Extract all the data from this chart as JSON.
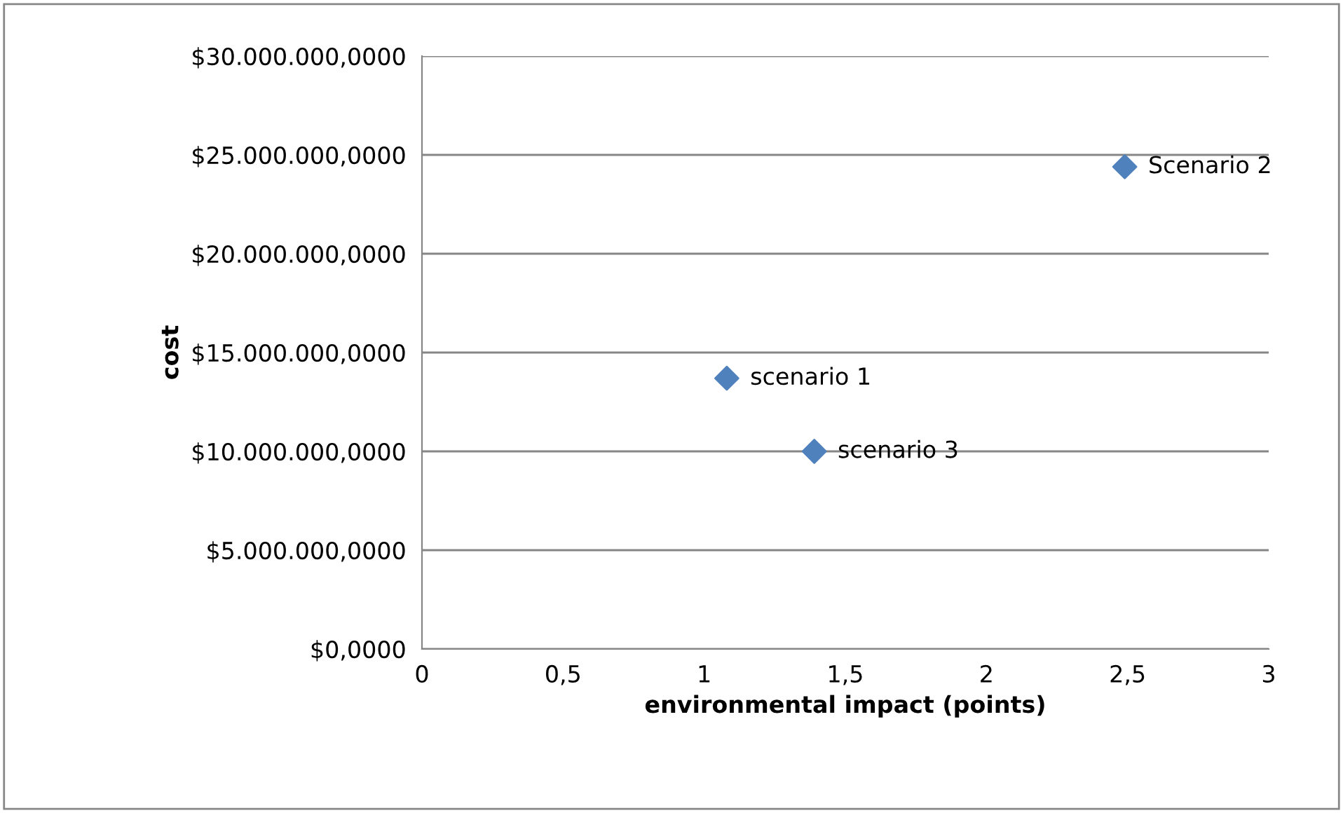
{
  "chart_data": {
    "type": "scatter",
    "xlabel": "environmental impact (points)",
    "ylabel": "cost",
    "x": [
      1.08,
      2.49,
      1.39
    ],
    "series": [
      {
        "color": "#4f81bd",
        "values": [
          13700000,
          24400000,
          10000000
        ]
      }
    ],
    "marker": "diamond",
    "grid": "y",
    "xlim": [
      0,
      3
    ],
    "xticks": [
      0,
      {
        "value": 0.5,
        "label": "0,5"
      },
      1,
      {
        "value": 1.5,
        "label": "1,5"
      },
      2,
      {
        "value": 2.5,
        "label": "2,5"
      },
      3
    ],
    "ylim": [
      0,
      30000000
    ],
    "yticks": [
      {
        "value": 0,
        "label": "$0,0000"
      },
      {
        "value": 5000000,
        "label": "$5.000.000,0000"
      },
      {
        "value": 10000000,
        "label": "$10.000.000,0000"
      },
      {
        "value": 15000000,
        "label": "$15.000.000,0000"
      },
      {
        "value": 20000000,
        "label": "$20.000.000,0000"
      },
      {
        "value": 25000000,
        "label": "$25.000.000,0000"
      },
      {
        "value": 30000000,
        "label": "$30.000.000,0000"
      }
    ],
    "annotations": [
      {
        "text": "scenario 1",
        "x": 1.08,
        "y": 13700000
      },
      {
        "text": "Scenario 2",
        "x": 2.49,
        "y": 24400000
      },
      {
        "text": "scenario 3",
        "x": 1.39,
        "y": 10000000
      }
    ]
  }
}
